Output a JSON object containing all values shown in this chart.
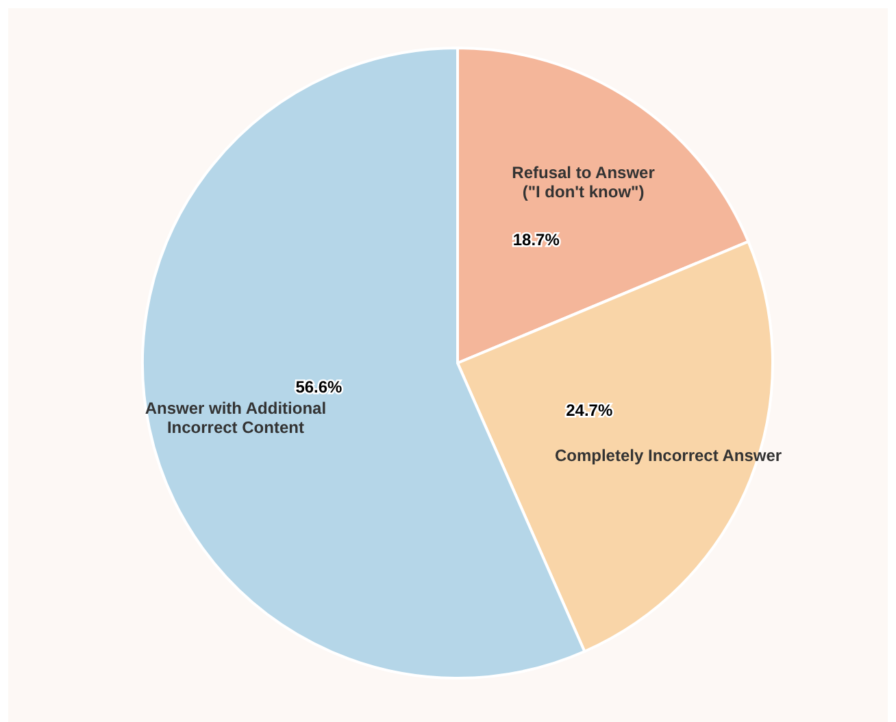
{
  "chart_data": {
    "type": "pie",
    "categories": [
      "Refusal to Answer\n(\"I don't know\")",
      "Completely Incorrect Answer",
      "Answer with Additional\nIncorrect Content"
    ],
    "values": [
      18.7,
      24.7,
      56.6
    ],
    "colors": [
      "#f4b69a",
      "#f9d5a8",
      "#b5d6e8"
    ],
    "value_labels": [
      "18.7%",
      "24.7%",
      "56.6%"
    ]
  }
}
